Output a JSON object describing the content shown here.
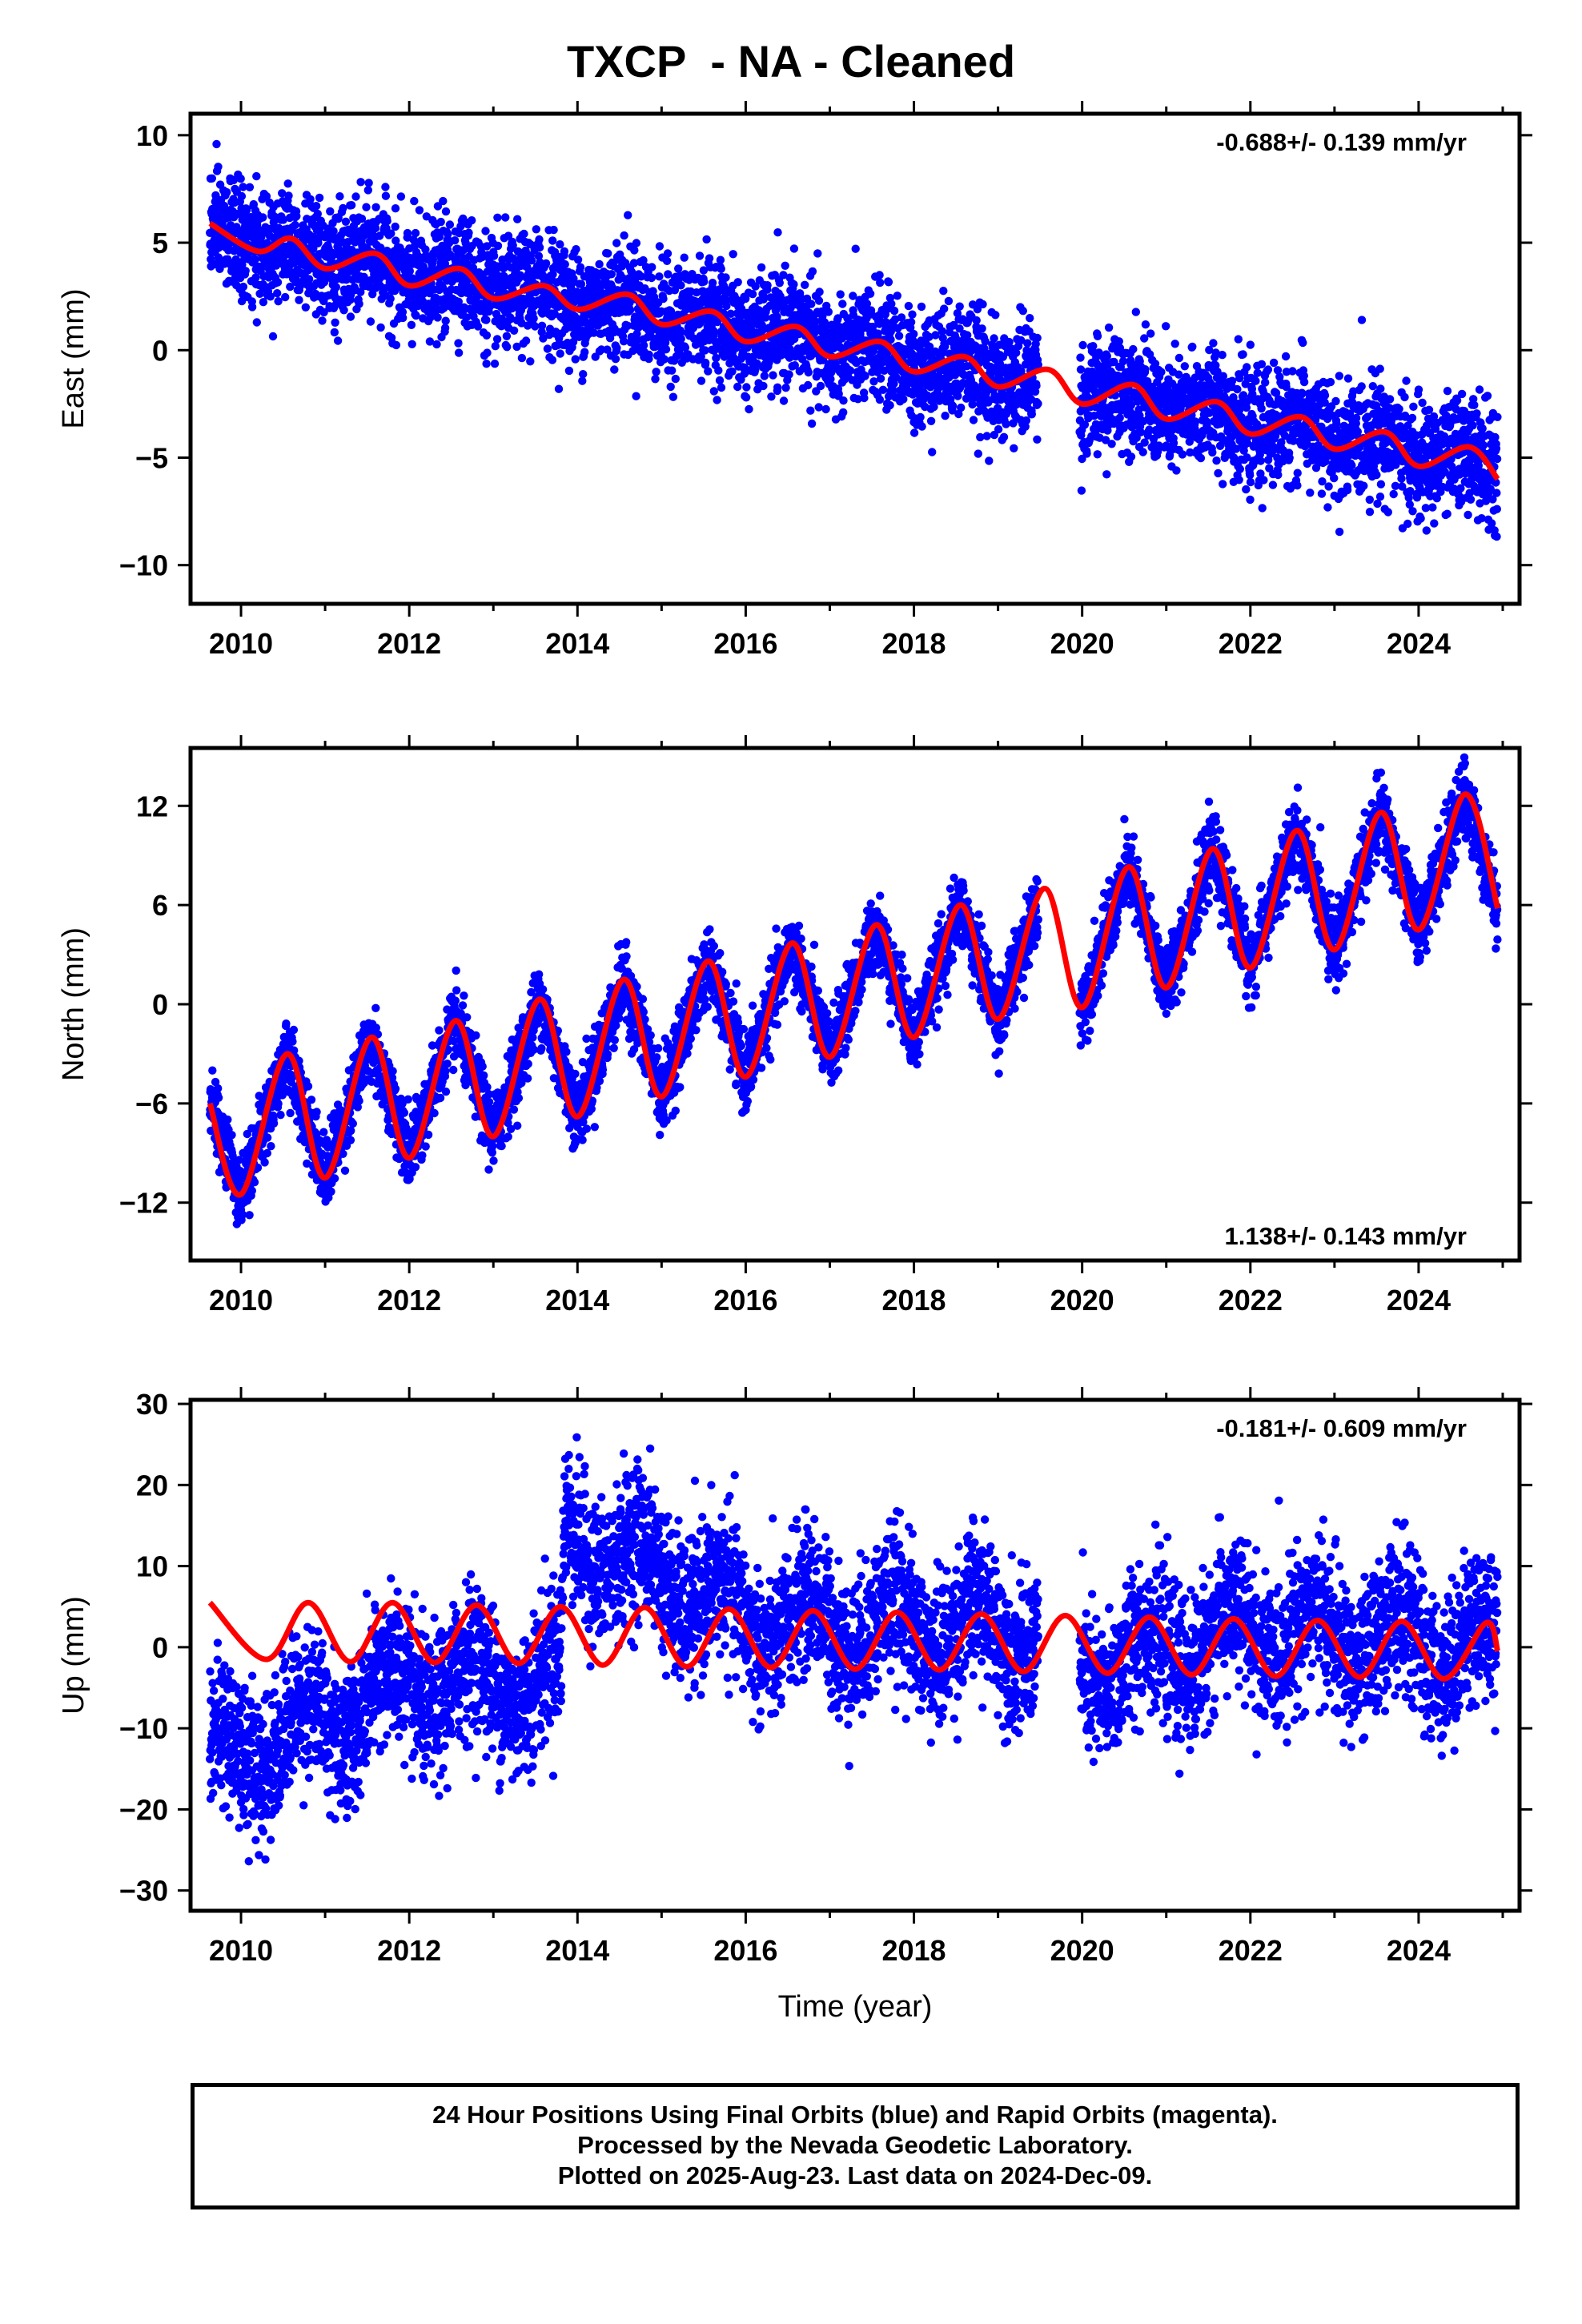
{
  "title": "TXCP  - NA - Cleaned",
  "footer": {
    "line1": "24 Hour Positions Using Final Orbits (blue) and Rapid Orbits (magenta).",
    "line2": "Processed by the Nevada Geodetic Laboratory.",
    "line3": "Plotted on 2025-Aug-23. Last data on 2024-Dec-09."
  },
  "colors": {
    "data": "#0000ff",
    "model": "#ff0000",
    "axis": "#000000"
  },
  "chart_data": [
    {
      "type": "scatter",
      "ylabel": "East (mm)",
      "xlabel": "",
      "rate_label": "-0.688+/- 0.139 mm/yr",
      "rate_position": "top-right",
      "xlim": [
        2009.4,
        2025.2
      ],
      "ylim": [
        -11.8,
        11
      ],
      "xticks": [
        2010,
        2012,
        2014,
        2016,
        2018,
        2020,
        2022,
        2024
      ],
      "yticks": [
        10,
        5,
        0,
        -5,
        -10
      ],
      "ytick_labels": [
        "10",
        "5",
        "0",
        "−5",
        "−10"
      ],
      "series": [
        {
          "role": "daily positions (final orbits)",
          "color": "#0000ff",
          "x_start": 2009.63,
          "x_end": 2024.94,
          "gap": [
            2019.48,
            2019.97
          ],
          "trend_at_start": 5.0,
          "trend_slope_per_yr": -0.688,
          "annual_amplitude": 0.9,
          "scatter_sd": 1.3
        },
        {
          "role": "model fit",
          "color": "#ff0000",
          "points": [
            [
              2009.63,
              5.9
            ],
            [
              2010.2,
              4.6
            ],
            [
              2010.6,
              5.2
            ],
            [
              2011.0,
              3.8
            ],
            [
              2011.6,
              4.5
            ],
            [
              2012.0,
              3.0
            ],
            [
              2012.6,
              3.8
            ],
            [
              2013.0,
              2.4
            ],
            [
              2013.6,
              3.0
            ],
            [
              2014.0,
              1.9
            ],
            [
              2014.6,
              2.6
            ],
            [
              2015.0,
              1.2
            ],
            [
              2015.6,
              1.8
            ],
            [
              2016.0,
              0.4
            ],
            [
              2016.6,
              1.1
            ],
            [
              2017.0,
              -0.3
            ],
            [
              2017.6,
              0.4
            ],
            [
              2018.0,
              -1.0
            ],
            [
              2018.6,
              -0.3
            ],
            [
              2019.0,
              -1.7
            ],
            [
              2019.6,
              -0.9
            ],
            [
              2020.0,
              -2.5
            ],
            [
              2020.6,
              -1.6
            ],
            [
              2021.0,
              -3.2
            ],
            [
              2021.6,
              -2.4
            ],
            [
              2022.0,
              -3.9
            ],
            [
              2022.6,
              -3.1
            ],
            [
              2023.0,
              -4.6
            ],
            [
              2023.6,
              -3.8
            ],
            [
              2024.0,
              -5.4
            ],
            [
              2024.6,
              -4.5
            ],
            [
              2024.94,
              -6.0
            ]
          ]
        }
      ]
    },
    {
      "type": "scatter",
      "ylabel": "North (mm)",
      "xlabel": "",
      "rate_label": "1.138+/- 0.143 mm/yr",
      "rate_position": "bottom-right",
      "xlim": [
        2009.4,
        2025.2
      ],
      "ylim": [
        -15.5,
        15.5
      ],
      "xticks": [
        2010,
        2012,
        2014,
        2016,
        2018,
        2020,
        2022,
        2024
      ],
      "yticks": [
        12,
        6,
        0,
        -6,
        -12
      ],
      "ytick_labels": [
        "12",
        "6",
        "0",
        "−6",
        "−12"
      ],
      "series": [
        {
          "role": "daily positions (final orbits)",
          "color": "#0000ff",
          "x_start": 2009.63,
          "x_end": 2024.94,
          "gap": [
            2019.48,
            2019.97
          ],
          "trend_at_start": -9.5,
          "trend_slope_per_yr": 1.138,
          "annual_amplitude": 4.2,
          "scatter_sd": 1.1
        },
        {
          "role": "model fit",
          "color": "#ff0000",
          "points": [
            [
              2009.63,
              -6.0
            ],
            [
              2010.0,
              -11.5
            ],
            [
              2010.55,
              -3.0
            ],
            [
              2011.0,
              -10.5
            ],
            [
              2011.55,
              -2.0
            ],
            [
              2012.0,
              -9.3
            ],
            [
              2012.55,
              -1.0
            ],
            [
              2013.0,
              -8.0
            ],
            [
              2013.55,
              0.3
            ],
            [
              2014.0,
              -6.8
            ],
            [
              2014.55,
              1.5
            ],
            [
              2015.0,
              -5.6
            ],
            [
              2015.55,
              2.6
            ],
            [
              2016.0,
              -4.4
            ],
            [
              2016.55,
              3.7
            ],
            [
              2017.0,
              -3.2
            ],
            [
              2017.55,
              4.8
            ],
            [
              2018.0,
              -2.0
            ],
            [
              2018.55,
              6.0
            ],
            [
              2019.0,
              -0.9
            ],
            [
              2019.55,
              7.0
            ],
            [
              2020.0,
              -0.2
            ],
            [
              2020.55,
              8.3
            ],
            [
              2021.0,
              1.0
            ],
            [
              2021.55,
              9.4
            ],
            [
              2022.0,
              2.2
            ],
            [
              2022.55,
              10.5
            ],
            [
              2023.0,
              3.3
            ],
            [
              2023.55,
              11.6
            ],
            [
              2024.0,
              4.5
            ],
            [
              2024.55,
              12.7
            ],
            [
              2024.94,
              5.8
            ]
          ]
        }
      ]
    },
    {
      "type": "scatter",
      "ylabel": "Up (mm)",
      "xlabel": "Time (year)",
      "rate_label": "-0.181+/- 0.609 mm/yr",
      "rate_position": "top-right",
      "xlim": [
        2009.4,
        2025.2
      ],
      "ylim": [
        -32.5,
        30.5
      ],
      "xticks": [
        2010,
        2012,
        2014,
        2016,
        2018,
        2020,
        2022,
        2024
      ],
      "yticks": [
        30,
        20,
        10,
        0,
        -10,
        -20,
        -30
      ],
      "ytick_labels": [
        "30",
        "20",
        "10",
        "0",
        "−10",
        "−20",
        "−30"
      ],
      "series": [
        {
          "role": "daily positions (final orbits)",
          "color": "#0000ff",
          "x_start": 2009.63,
          "x_end": 2024.94,
          "gap": [
            2019.48,
            2019.97
          ],
          "offsets": [
            [
              2009.63,
              -14
            ],
            [
              2012.0,
              -5
            ],
            [
              2013.8,
              -4
            ],
            [
              2013.85,
              14
            ],
            [
              2015.0,
              9
            ],
            [
              2016.0,
              3
            ],
            [
              2019.5,
              2
            ],
            [
              2020.0,
              -3
            ],
            [
              2022.0,
              2
            ],
            [
              2024.94,
              0
            ]
          ],
          "annual_amplitude": 3.5,
          "scatter_sd": 4.5
        },
        {
          "role": "model fit",
          "color": "#ff0000",
          "points": [
            [
              2009.63,
              5.5
            ],
            [
              2010.3,
              -1.5
            ],
            [
              2010.8,
              5.5
            ],
            [
              2011.3,
              -1.8
            ],
            [
              2011.8,
              5.5
            ],
            [
              2012.3,
              -1.9
            ],
            [
              2012.8,
              5.2
            ],
            [
              2013.3,
              -2.0
            ],
            [
              2013.8,
              5.0
            ],
            [
              2014.3,
              -2.2
            ],
            [
              2014.8,
              4.9
            ],
            [
              2015.3,
              -2.4
            ],
            [
              2015.8,
              4.7
            ],
            [
              2016.3,
              -2.5
            ],
            [
              2016.8,
              4.5
            ],
            [
              2017.3,
              -2.7
            ],
            [
              2017.8,
              4.3
            ],
            [
              2018.3,
              -2.8
            ],
            [
              2018.8,
              4.1
            ],
            [
              2019.3,
              -3.0
            ],
            [
              2019.8,
              3.9
            ],
            [
              2020.3,
              -3.2
            ],
            [
              2020.8,
              3.7
            ],
            [
              2021.3,
              -3.4
            ],
            [
              2021.8,
              3.5
            ],
            [
              2022.3,
              -3.6
            ],
            [
              2022.8,
              3.3
            ],
            [
              2023.3,
              -3.7
            ],
            [
              2023.8,
              3.2
            ],
            [
              2024.3,
              -3.9
            ],
            [
              2024.8,
              3.0
            ],
            [
              2024.94,
              -0.5
            ]
          ]
        }
      ]
    }
  ]
}
